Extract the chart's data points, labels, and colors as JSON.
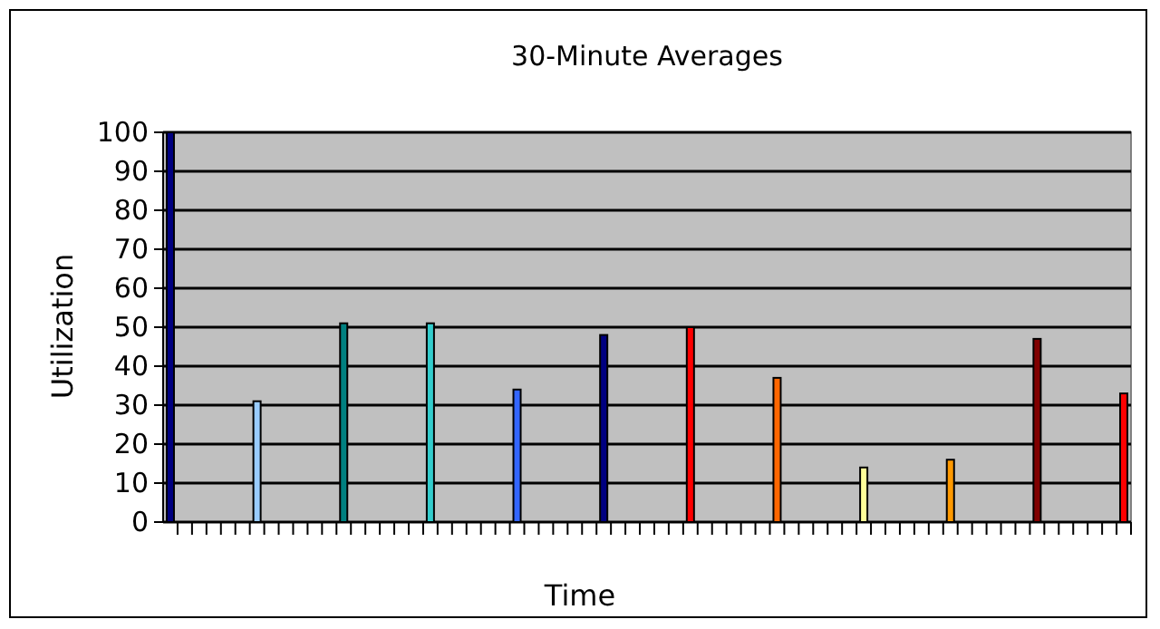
{
  "chart_data": {
    "type": "bar",
    "title": "30-Minute Averages",
    "xlabel": "Time",
    "ylabel": "Utilization",
    "categories": [
      null,
      null,
      null,
      null,
      null,
      null,
      null,
      null,
      null,
      null,
      null,
      null,
      null,
      null,
      null,
      null,
      null,
      null,
      null,
      null,
      null,
      null,
      null,
      null,
      null,
      null,
      null,
      null,
      null,
      null,
      null,
      null,
      null,
      null,
      null,
      null,
      null,
      null,
      null,
      null,
      null,
      null,
      null,
      null,
      null,
      null,
      null,
      null,
      null,
      null,
      null,
      null,
      null,
      null,
      null,
      null,
      null,
      null,
      null,
      null,
      null,
      null,
      null,
      null,
      null,
      null,
      null
    ],
    "values": [
      100,
      null,
      null,
      null,
      null,
      null,
      31,
      null,
      null,
      null,
      null,
      null,
      51,
      null,
      null,
      null,
      null,
      null,
      51,
      null,
      null,
      null,
      null,
      null,
      34,
      null,
      null,
      null,
      null,
      null,
      48,
      null,
      null,
      null,
      null,
      null,
      50,
      null,
      null,
      null,
      null,
      null,
      37,
      null,
      null,
      null,
      null,
      null,
      14,
      null,
      null,
      null,
      null,
      null,
      16,
      null,
      null,
      null,
      null,
      null,
      47,
      null,
      null,
      null,
      null,
      null,
      33
    ],
    "colors": [
      "#000080",
      null,
      null,
      null,
      null,
      null,
      "#99ccff",
      null,
      null,
      null,
      null,
      null,
      "#008080",
      null,
      null,
      null,
      null,
      null,
      "#33cccc",
      null,
      null,
      null,
      null,
      null,
      "#3366ff",
      null,
      null,
      null,
      null,
      null,
      "#000080",
      null,
      null,
      null,
      null,
      null,
      "#ff0000",
      null,
      null,
      null,
      null,
      null,
      "#ff6600",
      null,
      null,
      null,
      null,
      null,
      "#ffff99",
      null,
      null,
      null,
      null,
      null,
      "#ff9900",
      null,
      null,
      null,
      null,
      null,
      "#800000",
      null,
      null,
      null,
      null,
      null,
      "#ff0000"
    ],
    "ylim": [
      0,
      100
    ],
    "yticks": [
      0,
      10,
      20,
      30,
      40,
      50,
      60,
      70,
      80,
      90,
      100
    ],
    "grid": "y"
  }
}
